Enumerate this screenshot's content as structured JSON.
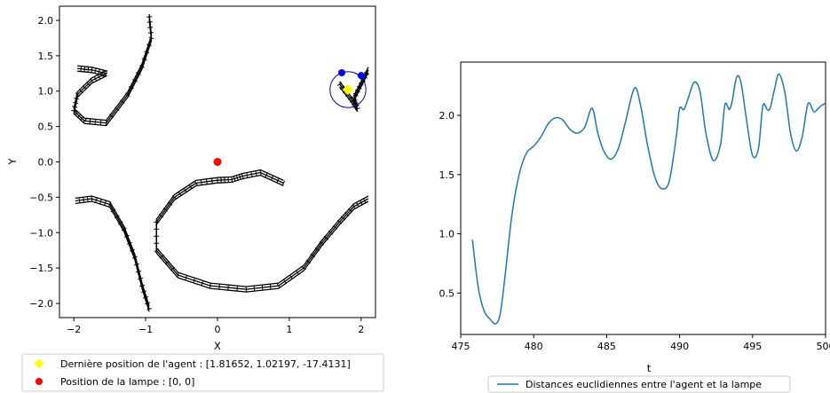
{
  "chart_data": [
    {
      "type": "scatter",
      "xlabel": "X",
      "ylabel": "Y",
      "xlim": [
        -2.2,
        2.2
      ],
      "ylim": [
        -2.2,
        2.2
      ],
      "xticks": [
        -2,
        -1,
        0,
        1,
        2
      ],
      "xtick_labels": [
        "−2",
        "−1",
        "0",
        "1",
        "2"
      ],
      "yticks": [
        -2.0,
        -1.5,
        -1.0,
        -0.5,
        0.0,
        0.5,
        1.0,
        1.5,
        2.0
      ],
      "ytick_labels": [
        "−2.0",
        "−1.5",
        "−1.0",
        "−0.5",
        "0.0",
        "0.5",
        "1.0",
        "1.5",
        "2.0"
      ],
      "legend": {
        "placement": "below",
        "entries": [
          {
            "label": "Dernière position de l'agent : [1.81652, 1.02197, -17.4131]",
            "color": "#ffff00",
            "marker": "diamond"
          },
          {
            "label": "Position de la lampe : [0, 0]",
            "color": "#ff0000",
            "marker": "circle"
          }
        ]
      },
      "agent_position": {
        "x": 1.81652,
        "y": 1.02197
      },
      "lamp_position": {
        "x": 0,
        "y": 0
      },
      "sensor_circle": {
        "center": [
          1.81652,
          1.02197
        ],
        "radius": 0.25,
        "color": "#0000cc"
      },
      "blue_points": [
        {
          "x": 1.73,
          "y": 1.26
        },
        {
          "x": 2.0,
          "y": 1.22
        }
      ],
      "trajectories": [
        {
          "points": [
            [
              -0.95,
              2.05
            ],
            [
              -0.92,
              1.75
            ],
            [
              -1.05,
              1.35
            ],
            [
              -1.25,
              0.95
            ],
            [
              -1.55,
              0.55
            ],
            [
              -1.85,
              0.58
            ],
            [
              -2.0,
              0.72
            ],
            [
              -1.95,
              0.95
            ],
            [
              -1.75,
              1.15
            ],
            [
              -1.55,
              1.25
            ],
            [
              -1.75,
              1.3
            ],
            [
              -1.95,
              1.32
            ]
          ]
        },
        {
          "points": [
            [
              -0.95,
              -2.08
            ],
            [
              -1.05,
              -1.75
            ],
            [
              -1.15,
              -1.35
            ],
            [
              -1.3,
              -0.95
            ],
            [
              -1.5,
              -0.6
            ],
            [
              -1.75,
              -0.52
            ],
            [
              -1.98,
              -0.55
            ]
          ]
        },
        {
          "points": [
            [
              0.92,
              -0.3
            ],
            [
              0.6,
              -0.15
            ],
            [
              0.35,
              -0.2
            ],
            [
              0.2,
              -0.25
            ],
            [
              0.0,
              -0.26
            ],
            [
              -0.3,
              -0.3
            ],
            [
              -0.6,
              -0.5
            ],
            [
              -0.85,
              -0.85
            ],
            [
              -0.85,
              -1.25
            ],
            [
              -0.55,
              -1.6
            ],
            [
              -0.1,
              -1.75
            ],
            [
              0.4,
              -1.8
            ],
            [
              0.85,
              -1.75
            ],
            [
              1.2,
              -1.5
            ],
            [
              1.45,
              -1.15
            ],
            [
              1.7,
              -0.85
            ],
            [
              1.9,
              -0.63
            ],
            [
              2.1,
              -0.52
            ]
          ]
        },
        {
          "points": [
            [
              1.7,
              1.1
            ],
            [
              1.85,
              0.9
            ],
            [
              1.95,
              0.75
            ],
            [
              1.9,
              0.9
            ],
            [
              2.0,
              1.1
            ],
            [
              2.1,
              1.3
            ]
          ]
        }
      ]
    },
    {
      "type": "line",
      "xlabel": "t",
      "ylabel": "",
      "xlim": [
        475,
        500
      ],
      "ylim": [
        0.15,
        2.45
      ],
      "xticks": [
        475,
        480,
        485,
        490,
        495,
        500
      ],
      "yticks": [
        0.5,
        1.0,
        1.5,
        2.0
      ],
      "ytick_labels": [
        "0.5",
        "1.0",
        "1.5",
        "2.0"
      ],
      "legend": {
        "placement": "below",
        "entries": [
          {
            "label": "Distances euclidiennes entre l'agent et la lampe",
            "color": "#1f77b4"
          }
        ]
      },
      "series": [
        {
          "name": "Distances euclidiennes entre l'agent et la lampe",
          "color": "#1f77b4",
          "x": [
            475.8,
            476.2,
            476.6,
            477.0,
            477.4,
            477.7,
            478.0,
            478.5,
            479.0,
            479.5,
            480.0,
            480.5,
            481.0,
            481.5,
            482.0,
            482.5,
            483.0,
            483.5,
            484.0,
            484.4,
            484.8,
            485.3,
            485.8,
            486.3,
            486.9,
            487.3,
            487.8,
            488.3,
            488.8,
            489.3,
            489.8,
            490.0,
            490.3,
            490.6,
            491.0,
            491.4,
            491.8,
            492.3,
            492.8,
            493.1,
            493.4,
            493.6,
            493.9,
            494.2,
            494.6,
            495.0,
            495.4,
            495.7,
            496.0,
            496.2,
            496.5,
            496.8,
            497.2,
            497.6,
            498.0,
            498.4,
            498.8,
            499.2,
            499.5,
            499.8,
            500.0
          ],
          "values": [
            0.95,
            0.55,
            0.35,
            0.28,
            0.24,
            0.32,
            0.6,
            1.15,
            1.5,
            1.68,
            1.74,
            1.82,
            1.93,
            1.98,
            1.96,
            1.88,
            1.85,
            1.9,
            2.06,
            1.85,
            1.7,
            1.63,
            1.72,
            1.95,
            2.23,
            2.1,
            1.75,
            1.48,
            1.38,
            1.45,
            1.85,
            2.06,
            2.05,
            2.15,
            2.28,
            2.2,
            1.85,
            1.62,
            1.75,
            2.09,
            2.05,
            2.12,
            2.32,
            2.28,
            1.95,
            1.66,
            1.72,
            2.08,
            2.05,
            2.06,
            2.22,
            2.35,
            2.2,
            1.85,
            1.7,
            1.82,
            2.1,
            2.03,
            2.06,
            2.09,
            2.1
          ]
        }
      ]
    }
  ]
}
